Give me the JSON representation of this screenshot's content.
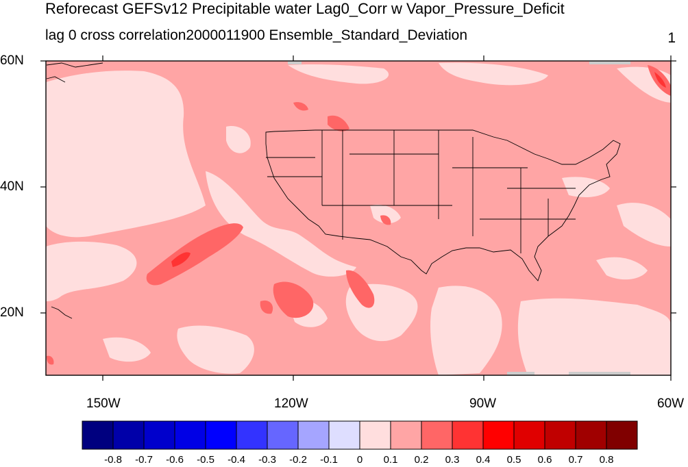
{
  "title": "Reforecast GEFSv12 Precipitable water Lag0_Corr w Vapor_Pressure_Deficit",
  "subtitle_left": "lag 0 cross correlation2000011900 Ensemble_Standard_Deviation",
  "subtitle_right": "1",
  "lat_labels": [
    "60N",
    "40N",
    "20N"
  ],
  "lon_labels": [
    "150W",
    "120W",
    "90W",
    "60W"
  ],
  "colorbar": {
    "colors": [
      "#00007f",
      "#0000a9",
      "#0000cc",
      "#0000e6",
      "#0000ff",
      "#3333ff",
      "#6666ff",
      "#a5a5ff",
      "#dedeff",
      "#ffdede",
      "#ffa5a5",
      "#ff6666",
      "#ff3333",
      "#ff0000",
      "#e00000",
      "#c00000",
      "#a00000",
      "#800000"
    ],
    "labels": [
      "-0.8",
      "-0.7",
      "-0.6",
      "-0.5",
      "-0.4",
      "-0.3",
      "-0.2",
      "-0.1",
      "0",
      "0.1",
      "0.2",
      "0.3",
      "0.4",
      "0.5",
      "0.6",
      "0.7",
      "0.8"
    ]
  },
  "fill_colors": {
    "background": "#ffa5a5",
    "light": "#ffdede",
    "medium": "#ff6666",
    "strong": "#ff3333"
  }
}
